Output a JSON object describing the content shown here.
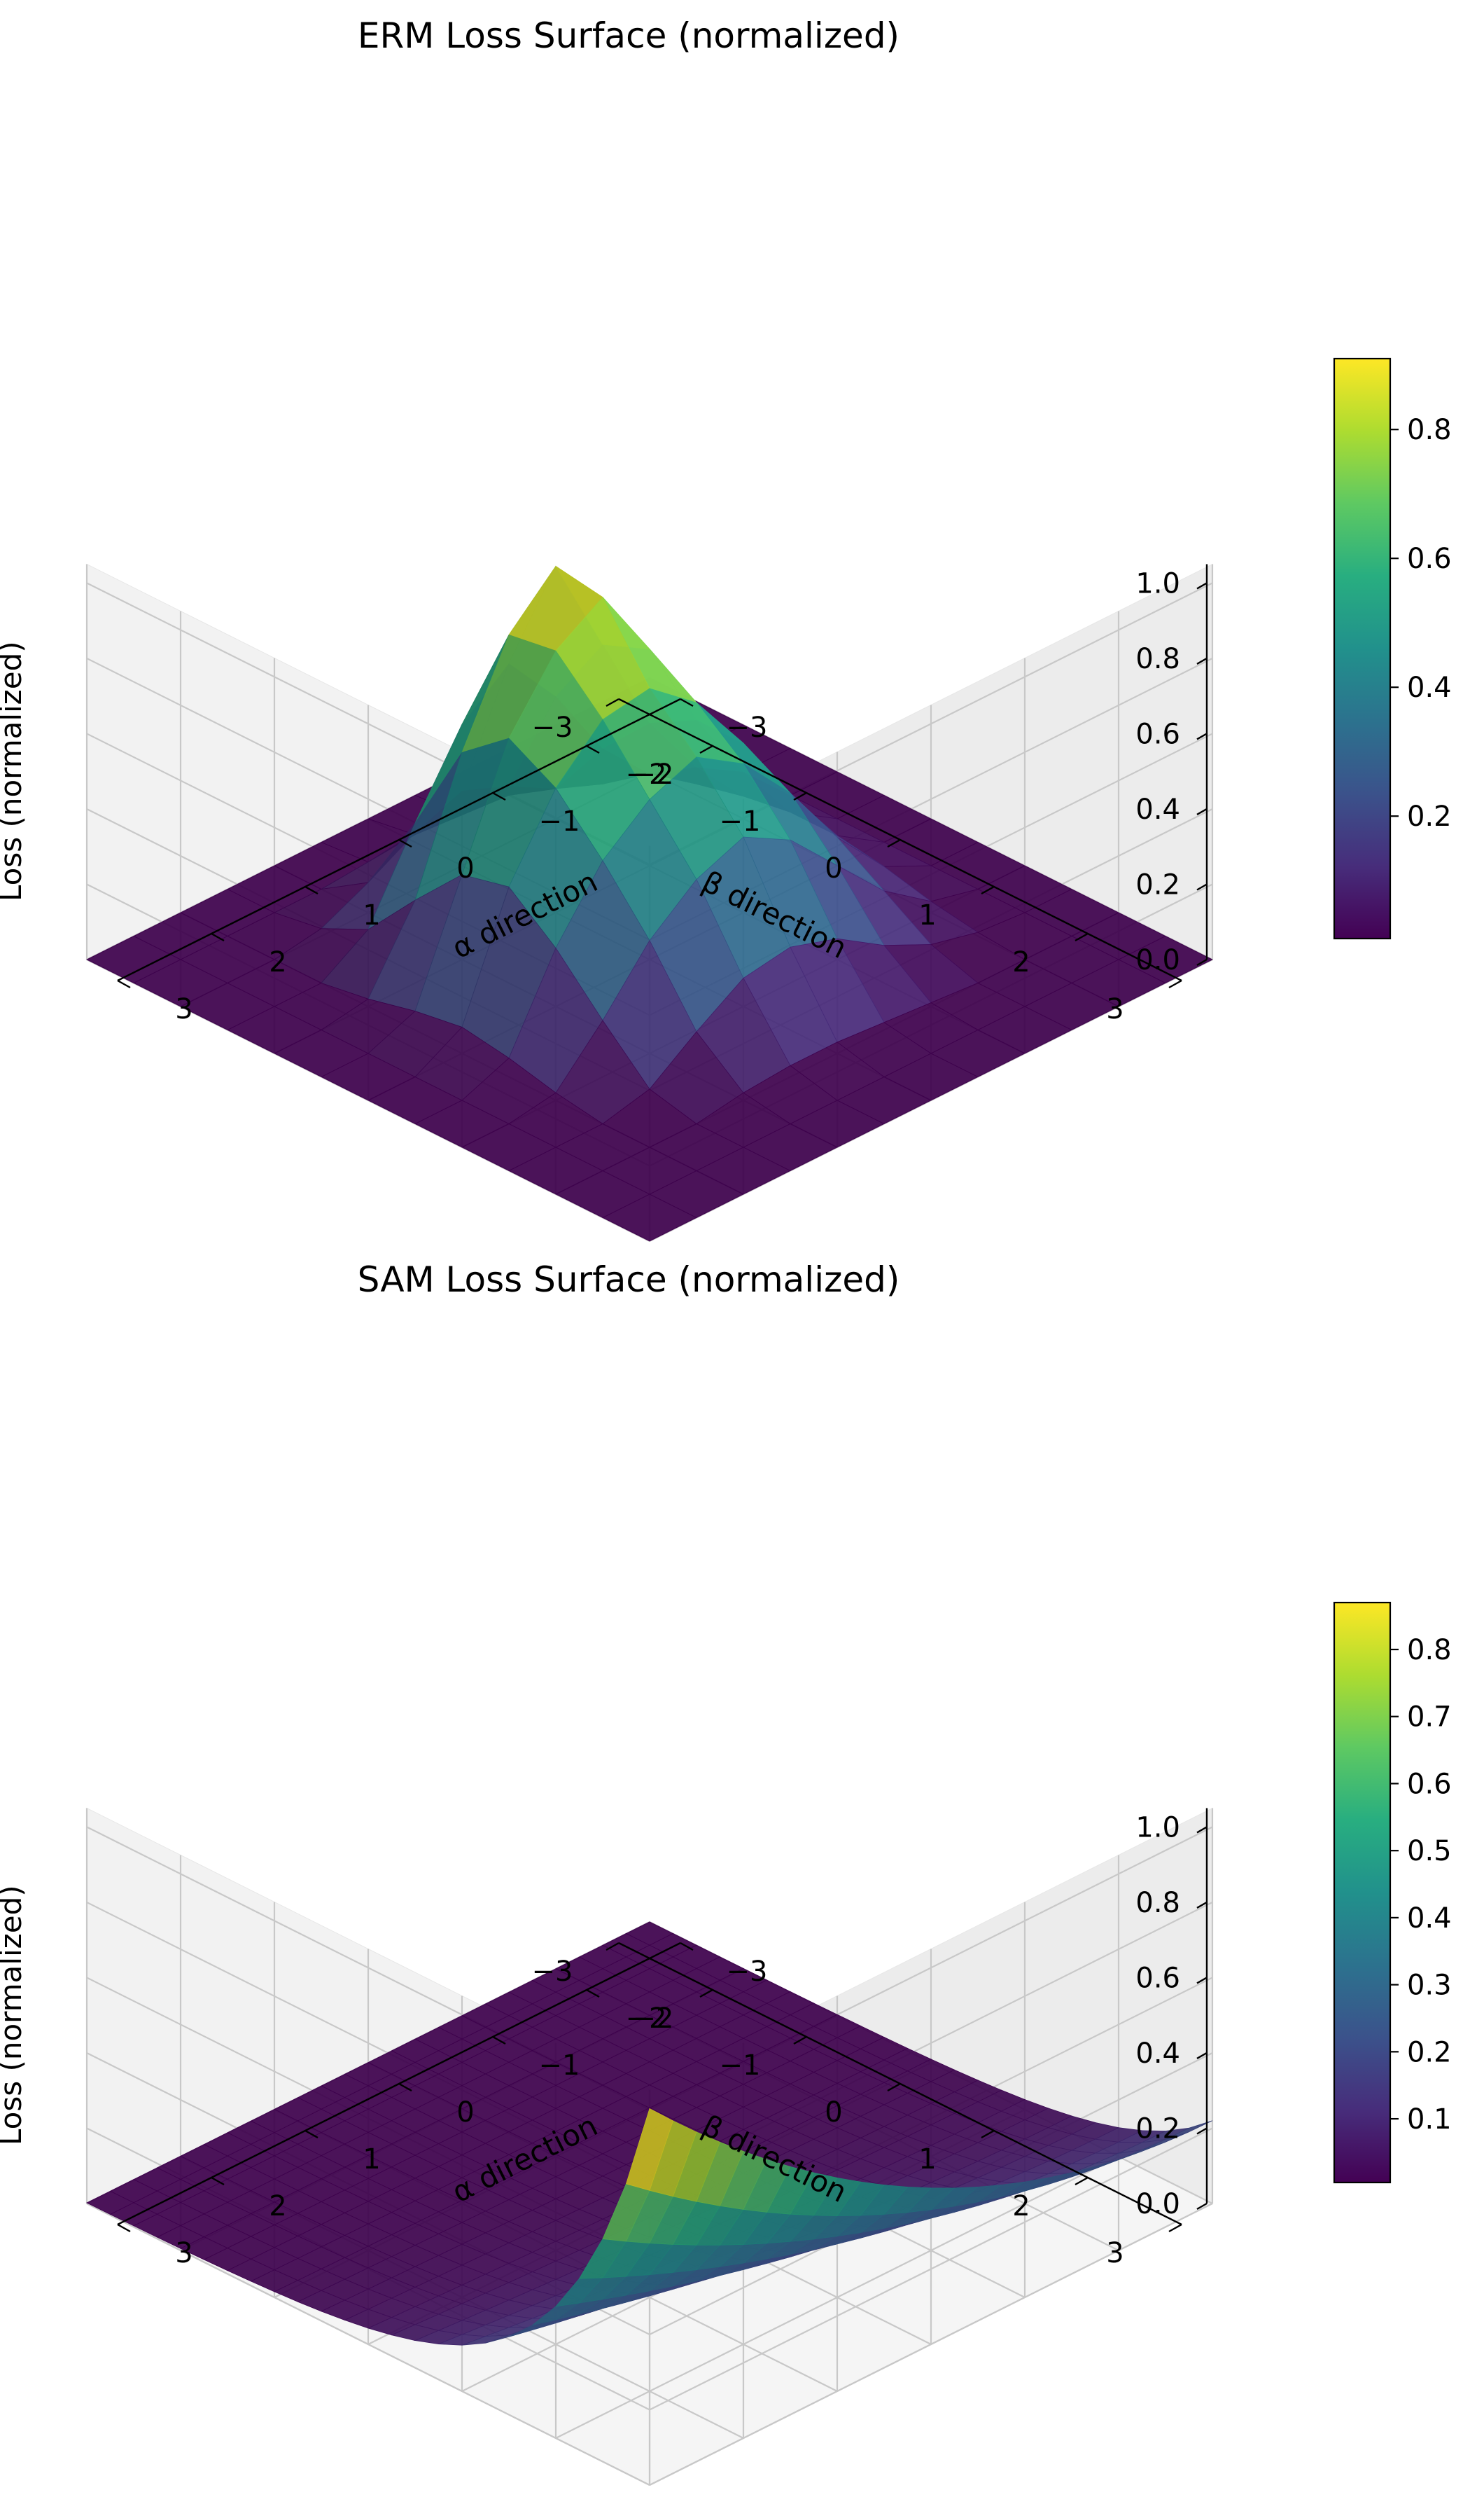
{
  "chart_data": [
    {
      "type": "surface3d",
      "title": "ERM Loss Surface (normalized)",
      "xlabel": "α direction",
      "ylabel": "β direction",
      "zlabel": "Loss (normalized)",
      "x": [
        -3,
        -2.5,
        -2,
        -1.5,
        -1,
        -0.5,
        0,
        0.5,
        1,
        1.5,
        2,
        2.5,
        3
      ],
      "y": [
        -3,
        -2.5,
        -2,
        -1.5,
        -1,
        -0.5,
        0,
        0.5,
        1,
        1.5,
        2,
        2.5,
        3
      ],
      "z": [
        [
          0,
          0,
          0,
          0,
          0,
          0,
          0,
          0,
          0,
          0,
          0,
          0,
          0
        ],
        [
          0,
          0,
          0,
          0,
          0,
          0,
          0,
          0,
          0,
          0,
          0,
          0,
          0
        ],
        [
          0,
          0,
          0,
          0,
          0.02,
          0.05,
          0.07,
          0.05,
          0.02,
          0,
          0,
          0,
          0
        ],
        [
          0,
          0,
          0,
          0.03,
          0.15,
          0.28,
          0.38,
          0.35,
          0.22,
          0.08,
          0.02,
          0,
          0
        ],
        [
          0,
          0,
          0.02,
          0.12,
          0.3,
          0.45,
          0.58,
          0.65,
          0.55,
          0.3,
          0.08,
          0,
          0
        ],
        [
          0,
          0,
          0.03,
          0.2,
          0.4,
          0.55,
          0.7,
          0.82,
          0.8,
          0.5,
          0.15,
          0.01,
          0
        ],
        [
          0,
          0,
          0.03,
          0.22,
          0.45,
          0.6,
          0.72,
          0.9,
          0.92,
          0.6,
          0.2,
          0.02,
          0
        ],
        [
          0,
          0,
          0.02,
          0.18,
          0.38,
          0.52,
          0.62,
          0.7,
          0.65,
          0.45,
          0.15,
          0.01,
          0
        ],
        [
          0,
          0,
          0.01,
          0.1,
          0.25,
          0.38,
          0.45,
          0.45,
          0.38,
          0.25,
          0.08,
          0,
          0
        ],
        [
          0,
          0,
          0,
          0.04,
          0.12,
          0.2,
          0.25,
          0.25,
          0.2,
          0.12,
          0.03,
          0,
          0
        ],
        [
          0,
          0,
          0,
          0.01,
          0.03,
          0.06,
          0.08,
          0.08,
          0.06,
          0.03,
          0.01,
          0,
          0
        ],
        [
          0,
          0,
          0,
          0,
          0,
          0,
          0,
          0,
          0,
          0,
          0,
          0,
          0
        ],
        [
          0,
          0,
          0,
          0,
          0,
          0,
          0,
          0,
          0,
          0,
          0,
          0,
          0
        ]
      ],
      "zlim": [
        0,
        1
      ],
      "zticks": [
        "0.0",
        "0.2",
        "0.4",
        "0.6",
        "0.8",
        "1.0"
      ],
      "xticks": [
        "−3",
        "−2",
        "−1",
        "0",
        "1",
        "2",
        "3"
      ],
      "yticks": [
        "−3",
        "−2",
        "−1",
        "0",
        "1",
        "2",
        "3"
      ],
      "colorbar": {
        "colormap": "viridis",
        "range": [
          0.01,
          0.91
        ],
        "ticks": [
          "0.2",
          "0.4",
          "0.6",
          "0.8"
        ],
        "tick_values": [
          0.2,
          0.4,
          0.6,
          0.8
        ]
      }
    },
    {
      "type": "surface3d",
      "title": "SAM Loss Surface (normalized)",
      "xlabel": "α direction",
      "ylabel": "β direction",
      "zlabel": "Loss (normalized)",
      "surface": "exp(-1.05·(α+3)) · (0.22 + 0.78·((3-β)/6)^2)",
      "zlim": [
        0,
        1
      ],
      "zticks": [
        "0.0",
        "0.2",
        "0.4",
        "0.6",
        "0.8",
        "1.0"
      ],
      "xticks": [
        "−3",
        "−2",
        "−1",
        "0",
        "1",
        "2",
        "3"
      ],
      "yticks": [
        "−3",
        "−2",
        "−1",
        "0",
        "1",
        "2",
        "3"
      ],
      "colorbar": {
        "colormap": "viridis",
        "range": [
          0.005,
          0.87
        ],
        "ticks": [
          "0.1",
          "0.2",
          "0.3",
          "0.4",
          "0.5",
          "0.6",
          "0.7",
          "0.8"
        ],
        "tick_values": [
          0.1,
          0.2,
          0.3,
          0.4,
          0.5,
          0.6,
          0.7,
          0.8
        ]
      }
    }
  ]
}
